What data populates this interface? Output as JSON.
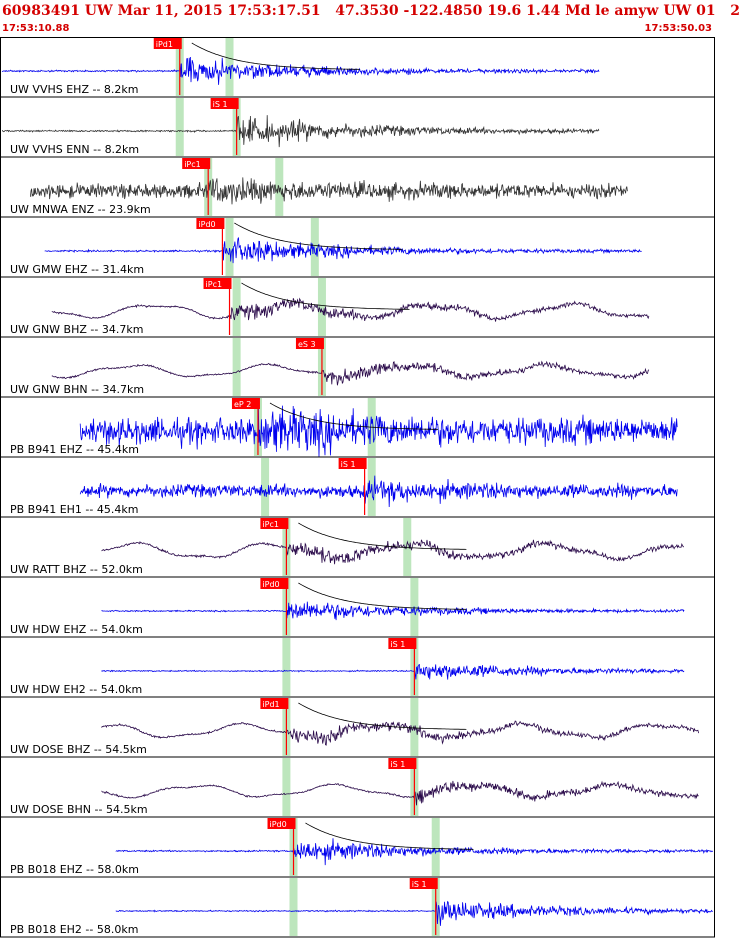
{
  "header": {
    "title": "60983491 UW Mar 11, 2015 17:53:17.51   47.3530 -122.4850 19.6 1.44 Md le amyw UW 01   2",
    "start_time": "17:53:10.88",
    "end_time": "17:53:50.03"
  },
  "colors": {
    "header_text": "#d40000",
    "pick_box": "#ff0000",
    "window_band": "#bde6bd",
    "blue_trace": "#0000ee",
    "gray_trace": "#333333",
    "purple_trace": "#2a0a4a",
    "coda_line": "#000000",
    "frame": "#000000"
  },
  "chart_data": {
    "type": "seismogram",
    "time_range": [
      "17:53:10.88",
      "17:53:50.03"
    ],
    "traces": [
      {
        "label": "UW VVHS EHZ -- 8.2km",
        "color": "blue",
        "start": 0.0,
        "end": 0.84,
        "style": "impulsive",
        "amplitude": 0.55,
        "pick": {
          "label": "iPd1",
          "t": 0.25
        },
        "green_bands": [
          0.25,
          0.32
        ],
        "coda": true
      },
      {
        "label": "UW VVHS ENN -- 8.2km",
        "color": "gray",
        "start": 0.0,
        "end": 0.84,
        "style": "impulsive",
        "amplitude": 0.6,
        "pick": {
          "label": "iS 1",
          "t": 0.33
        },
        "green_bands": [
          0.25,
          0.33
        ],
        "coda": false
      },
      {
        "label": "UW MNWA ENZ -- 23.9km",
        "color": "gray",
        "start": 0.04,
        "end": 0.88,
        "style": "noisy",
        "amplitude": 0.5,
        "pick": {
          "label": "iPc1",
          "t": 0.29
        },
        "green_bands": [
          0.29,
          0.39
        ],
        "coda": false
      },
      {
        "label": "UW GMW EHZ -- 31.4km",
        "color": "blue",
        "start": 0.06,
        "end": 0.9,
        "style": "impulsive",
        "amplitude": 0.55,
        "pick": {
          "label": "iPd0",
          "t": 0.31
        },
        "green_bands": [
          0.32,
          0.44
        ],
        "coda": true
      },
      {
        "label": "UW GNW BHZ -- 34.7km",
        "color": "purple",
        "start": 0.07,
        "end": 0.91,
        "style": "long-period",
        "amplitude": 0.5,
        "pick": {
          "label": "iPc1",
          "t": 0.32
        },
        "green_bands": [
          0.33,
          0.45
        ],
        "coda": true
      },
      {
        "label": "UW GNW BHN -- 34.7km",
        "color": "purple",
        "start": 0.07,
        "end": 0.91,
        "style": "long-period",
        "amplitude": 0.45,
        "pick": {
          "label": "eS 3",
          "t": 0.45
        },
        "green_bands": [
          0.33,
          0.45
        ],
        "coda": false
      },
      {
        "label": "PB B941 EHZ -- 45.4km",
        "color": "blue",
        "start": 0.11,
        "end": 0.95,
        "style": "noisy",
        "amplitude": 0.9,
        "pick": {
          "label": "eP 2",
          "t": 0.36
        },
        "green_bands": [
          0.36,
          0.52
        ],
        "coda": true
      },
      {
        "label": "PB B941 EH1 -- 45.4km",
        "color": "blue",
        "start": 0.11,
        "end": 0.95,
        "style": "noisy",
        "amplitude": 0.45,
        "pick": {
          "label": "iS 1",
          "t": 0.51
        },
        "green_bands": [
          0.37,
          0.52
        ],
        "coda": false
      },
      {
        "label": "UW RATT BHZ -- 52.0km",
        "color": "purple",
        "start": 0.14,
        "end": 0.96,
        "style": "long-period",
        "amplitude": 0.55,
        "pick": {
          "label": "iPc1",
          "t": 0.4
        },
        "green_bands": [
          0.4,
          0.57
        ],
        "coda": true
      },
      {
        "label": "UW HDW EHZ -- 54.0km",
        "color": "blue",
        "start": 0.14,
        "end": 0.96,
        "style": "impulsive",
        "amplitude": 0.45,
        "pick": {
          "label": "iPd0",
          "t": 0.4
        },
        "green_bands": [
          0.4,
          0.58
        ],
        "coda": true
      },
      {
        "label": "UW HDW EH2 -- 54.0km",
        "color": "blue",
        "start": 0.14,
        "end": 0.96,
        "style": "impulsive",
        "amplitude": 0.4,
        "pick": {
          "label": "iS 1",
          "t": 0.58
        },
        "green_bands": [
          0.4,
          0.58
        ],
        "coda": false
      },
      {
        "label": "UW DOSE BHZ -- 54.5km",
        "color": "purple",
        "start": 0.14,
        "end": 0.98,
        "style": "long-period",
        "amplitude": 0.5,
        "pick": {
          "label": "iPd1",
          "t": 0.4
        },
        "green_bands": [
          0.4,
          0.58
        ],
        "coda": true
      },
      {
        "label": "UW DOSE BHN -- 54.5km",
        "color": "purple",
        "start": 0.14,
        "end": 0.98,
        "style": "long-period",
        "amplitude": 0.45,
        "pick": {
          "label": "iS 1",
          "t": 0.58
        },
        "green_bands": [
          0.4,
          0.58
        ],
        "coda": false
      },
      {
        "label": "PB B018 EHZ -- 58.0km",
        "color": "blue",
        "start": 0.16,
        "end": 1.0,
        "style": "impulsive",
        "amplitude": 0.5,
        "pick": {
          "label": "iPd0",
          "t": 0.41
        },
        "green_bands": [
          0.41,
          0.61
        ],
        "coda": true
      },
      {
        "label": "PB B018 EH2 -- 58.0km",
        "color": "blue",
        "start": 0.16,
        "end": 1.0,
        "style": "impulsive",
        "amplitude": 0.45,
        "pick": {
          "label": "iS 1",
          "t": 0.61
        },
        "green_bands": [
          0.41,
          0.61
        ],
        "coda": false
      }
    ]
  }
}
